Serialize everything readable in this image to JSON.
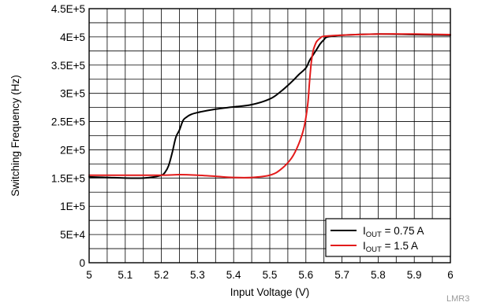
{
  "chart_data": {
    "type": "line",
    "xlabel": "Input Voltage (V)",
    "ylabel": "Switching Frequency (Hz)",
    "xlim": [
      5,
      6
    ],
    "ylim": [
      0,
      450000
    ],
    "x_ticks": [
      "5",
      "5.1",
      "5.2",
      "5.3",
      "5.4",
      "5.5",
      "5.6",
      "5.7",
      "5.8",
      "5.9",
      "6"
    ],
    "y_ticks": [
      "0",
      "5E+4",
      "1E+5",
      "1.5E+5",
      "2E+5",
      "2.5E+5",
      "3E+5",
      "3.5E+5",
      "4E+5",
      "4.5E+5"
    ],
    "grid": true,
    "legend_position": "bottom-right",
    "series": [
      {
        "name": "I_OUT = 0.75 A",
        "label_main": "I",
        "label_sub": "OUT",
        "label_rest": " = 0.75 A",
        "color": "#000000",
        "x": [
          5.0,
          5.05,
          5.1,
          5.15,
          5.18,
          5.2,
          5.21,
          5.22,
          5.23,
          5.24,
          5.25,
          5.26,
          5.27,
          5.28,
          5.3,
          5.35,
          5.4,
          5.45,
          5.5,
          5.53,
          5.56,
          5.58,
          5.6,
          5.61,
          5.62,
          5.63,
          5.64,
          5.65,
          5.66,
          5.7,
          5.8,
          5.9,
          6.0
        ],
        "y": [
          152000,
          151000,
          150000,
          150000,
          152000,
          155000,
          160000,
          172000,
          195000,
          222000,
          235000,
          252000,
          258000,
          262000,
          266000,
          272000,
          276000,
          280000,
          290000,
          303000,
          320000,
          333000,
          345000,
          358000,
          368000,
          378000,
          388000,
          395000,
          400000,
          403000,
          405000,
          404000,
          403000
        ]
      },
      {
        "name": "I_OUT = 1.5 A",
        "label_main": "I",
        "label_sub": "OUT",
        "label_rest": " = 1.5 A",
        "color": "#e31b1b",
        "x": [
          5.0,
          5.1,
          5.2,
          5.25,
          5.3,
          5.35,
          5.4,
          5.45,
          5.5,
          5.53,
          5.56,
          5.58,
          5.595,
          5.605,
          5.61,
          5.615,
          5.62,
          5.625,
          5.63,
          5.64,
          5.65,
          5.7,
          5.8,
          5.9,
          6.0
        ],
        "y": [
          155000,
          155000,
          155000,
          156000,
          155000,
          153000,
          151000,
          151000,
          155000,
          165000,
          185000,
          210000,
          240000,
          280000,
          320000,
          355000,
          375000,
          385000,
          392000,
          398000,
          401000,
          403000,
          405000,
          405000,
          404000
        ]
      }
    ]
  },
  "watermark": "LMR3"
}
